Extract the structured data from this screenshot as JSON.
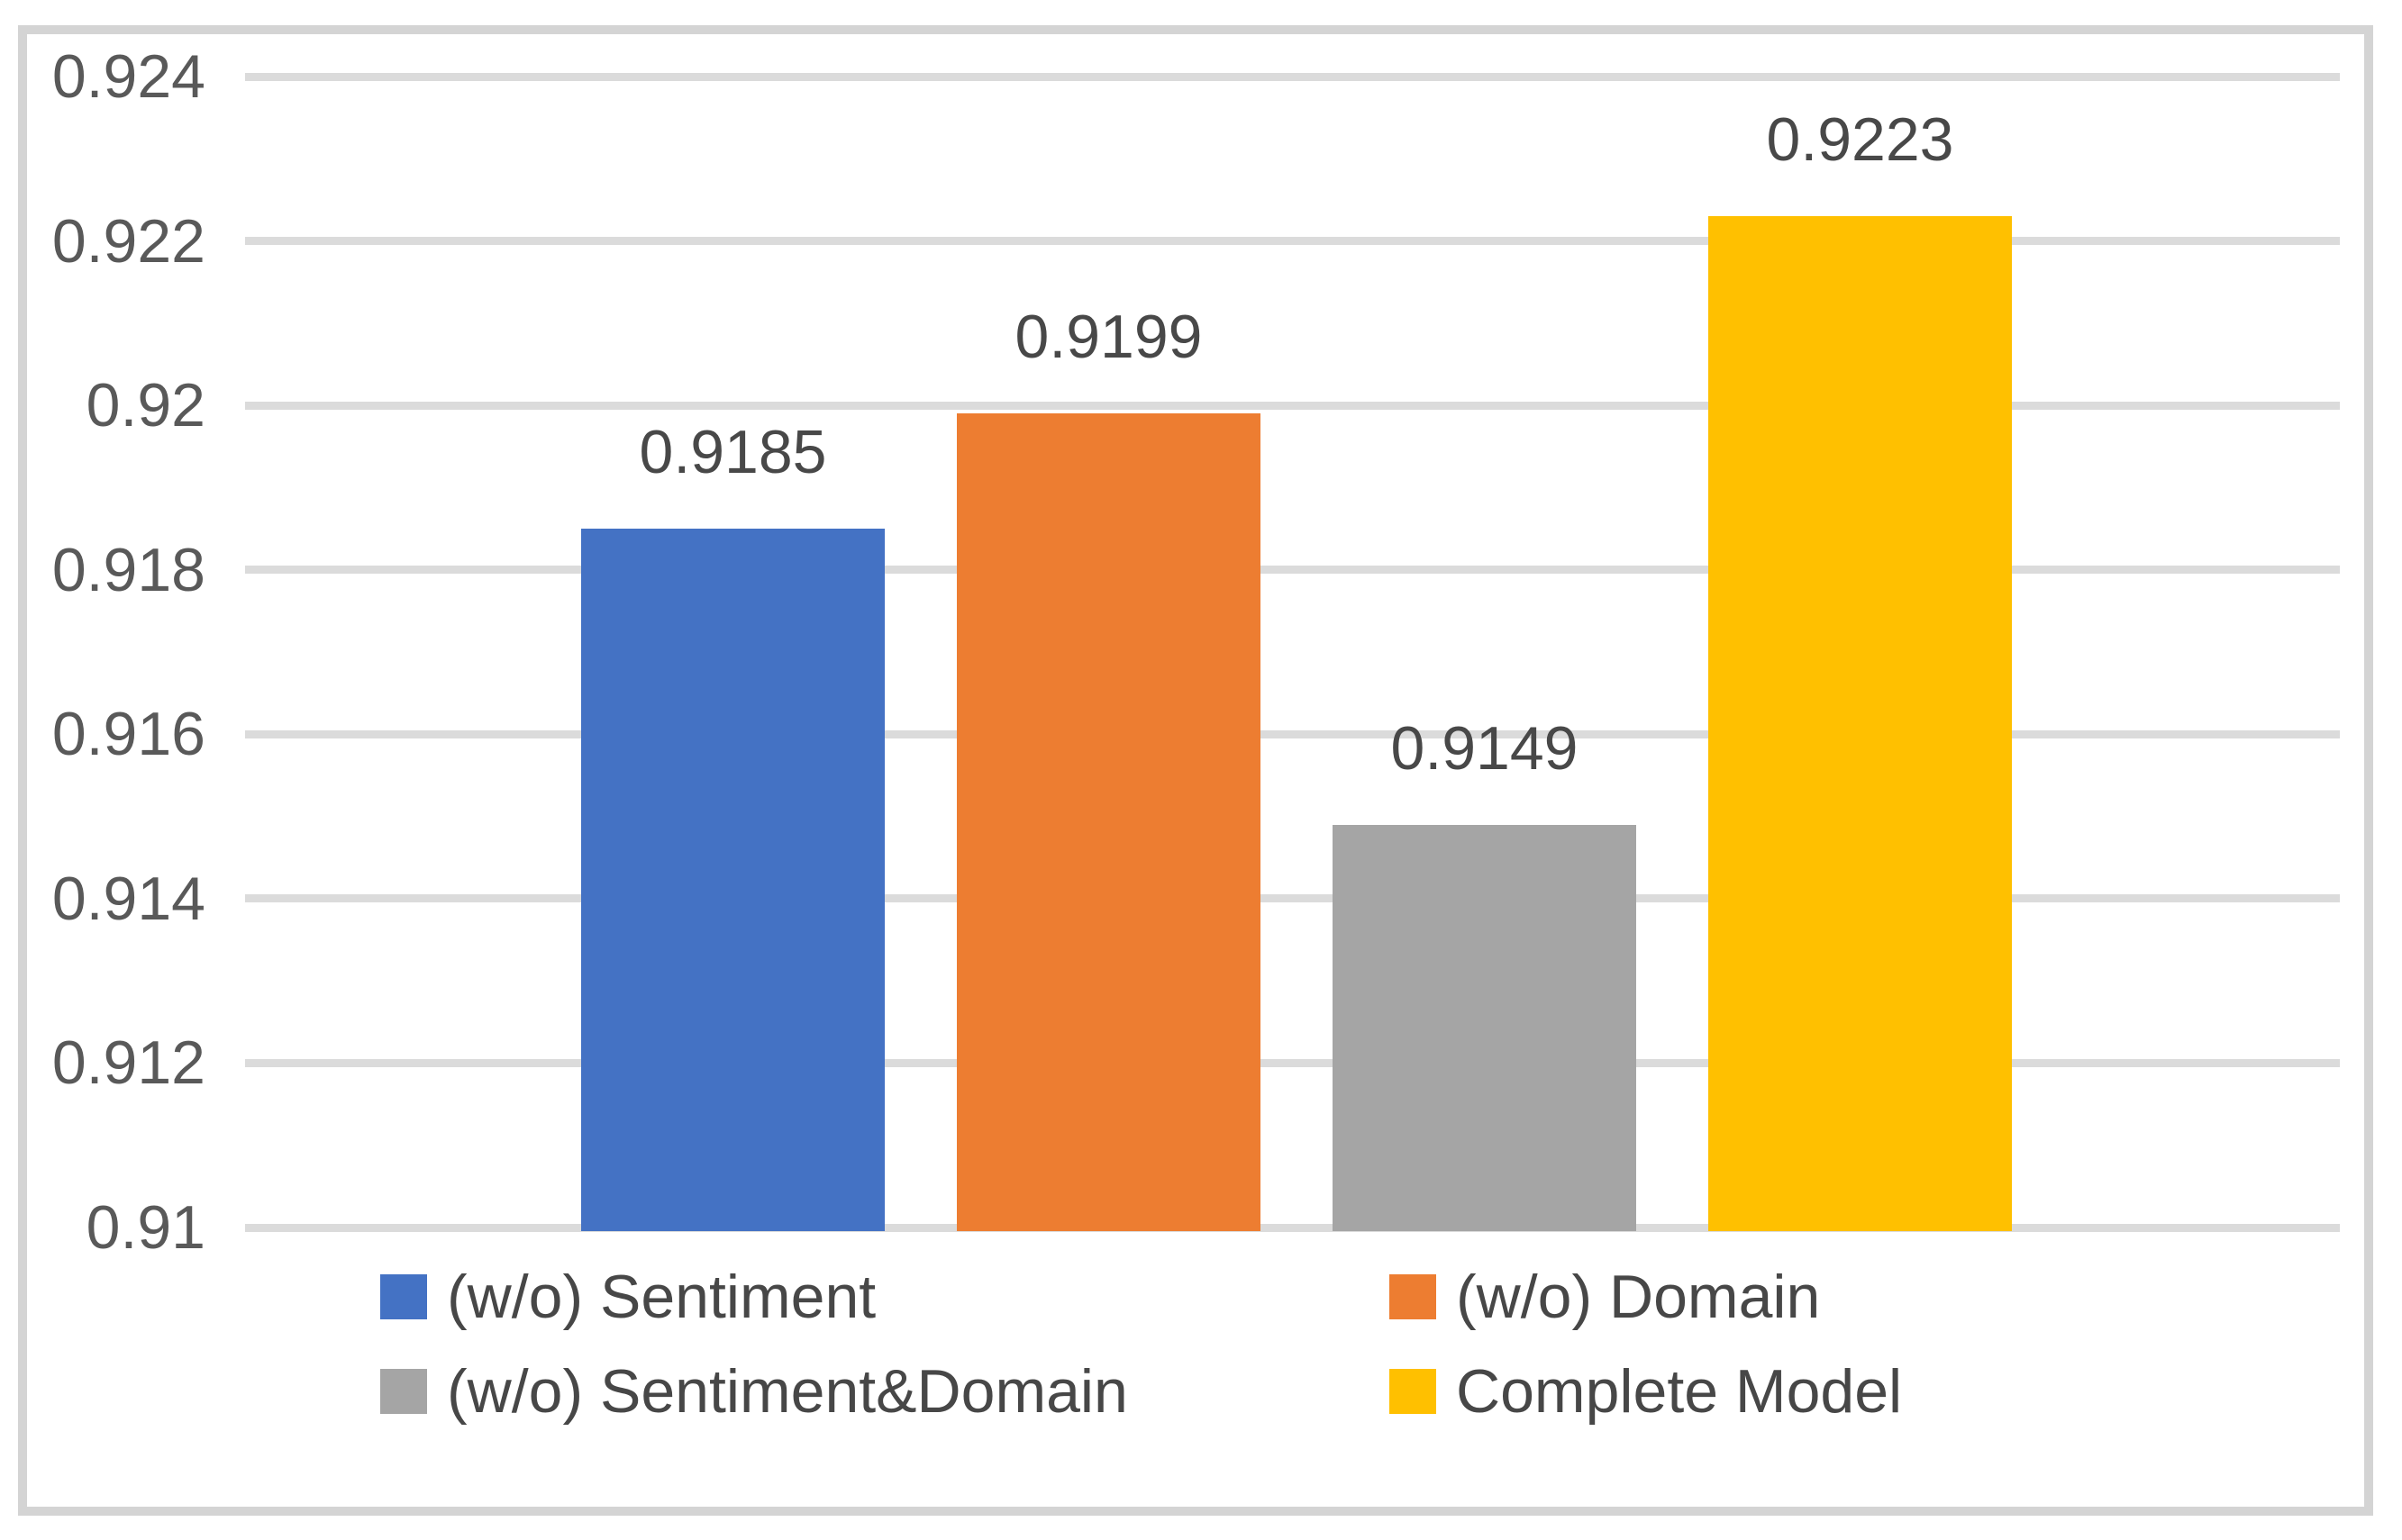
{
  "chart_data": {
    "type": "bar",
    "title": "",
    "xlabel": "",
    "ylabel": "",
    "categories": [
      "(w/o) Sentiment",
      "(w/o) Domain",
      "(w/o) Sentiment&Domain",
      "Complete Model"
    ],
    "series": [
      {
        "name": "(w/o) Sentiment",
        "value": 0.9185,
        "data_label": "0.9185",
        "color": "#4472c4"
      },
      {
        "name": "(w/o) Domain",
        "value": 0.9199,
        "data_label": "0.9199",
        "color": "#ed7d31"
      },
      {
        "name": "(w/o) Sentiment&Domain",
        "value": 0.9149,
        "data_label": "0.9149",
        "color": "#a5a5a5"
      },
      {
        "name": "Complete Model",
        "value": 0.9223,
        "data_label": "0.9223",
        "color": "#ffc000"
      }
    ],
    "y_axis": {
      "min": 0.91,
      "max": 0.924,
      "tick_step": 0.002,
      "tick_labels": [
        "0.924",
        "0.922",
        "0.92",
        "0.918",
        "0.916",
        "0.914",
        "0.912",
        "0.91"
      ]
    },
    "grid": true,
    "legend": {
      "position": "bottom",
      "rows": 2,
      "columns": 2,
      "entries": [
        {
          "label": "(w/o) Sentiment",
          "color": "#4472c4"
        },
        {
          "label": "(w/o) Domain",
          "color": "#ed7d31"
        },
        {
          "label": "(w/o) Sentiment&Domain",
          "color": "#a5a5a5"
        },
        {
          "label": "Complete Model",
          "color": "#ffc000"
        }
      ]
    },
    "colors": {
      "gridline": "#dbdbdb",
      "frame_border": "#d4d4d4",
      "axis_text": "#595959",
      "data_label_text": "#484848",
      "legend_text": "#474747",
      "background": "#ffffff"
    }
  }
}
